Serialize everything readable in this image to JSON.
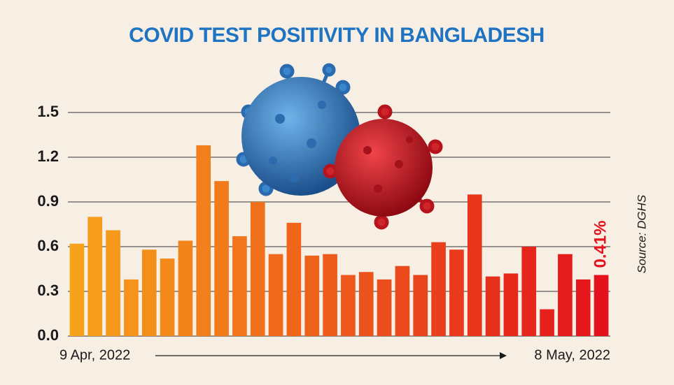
{
  "chart_data": {
    "type": "bar",
    "title": "COVID TEST POSITIVITY IN BANGLADESH",
    "source": "Source: DGHS",
    "categories": [
      "9 Apr, 2022",
      null,
      null,
      null,
      null,
      null,
      null,
      null,
      null,
      null,
      null,
      null,
      null,
      null,
      null,
      null,
      null,
      null,
      null,
      null,
      null,
      null,
      null,
      null,
      null,
      null,
      null,
      null,
      null,
      "8 May, 2022"
    ],
    "values": [
      0.62,
      0.8,
      0.71,
      0.38,
      0.58,
      0.52,
      0.64,
      1.28,
      1.04,
      0.67,
      0.9,
      0.55,
      0.76,
      0.54,
      0.55,
      0.41,
      0.43,
      0.38,
      0.47,
      0.41,
      0.63,
      0.58,
      0.95,
      0.4,
      0.42,
      0.6,
      0.18,
      0.55,
      0.38,
      0.41
    ],
    "value_labels": [
      null,
      null,
      null,
      null,
      null,
      null,
      null,
      null,
      null,
      null,
      null,
      null,
      null,
      null,
      null,
      null,
      null,
      null,
      null,
      null,
      null,
      null,
      null,
      null,
      null,
      null,
      null,
      null,
      null,
      "0.41%"
    ],
    "gradient": [
      "#f7a21b",
      "#e3121c"
    ],
    "ylim": [
      0,
      1.5
    ],
    "yticks": [
      {
        "value": 0,
        "label": "0.0"
      },
      0.3,
      0.6,
      0.9,
      1.2,
      1.5
    ],
    "grid": true
  }
}
